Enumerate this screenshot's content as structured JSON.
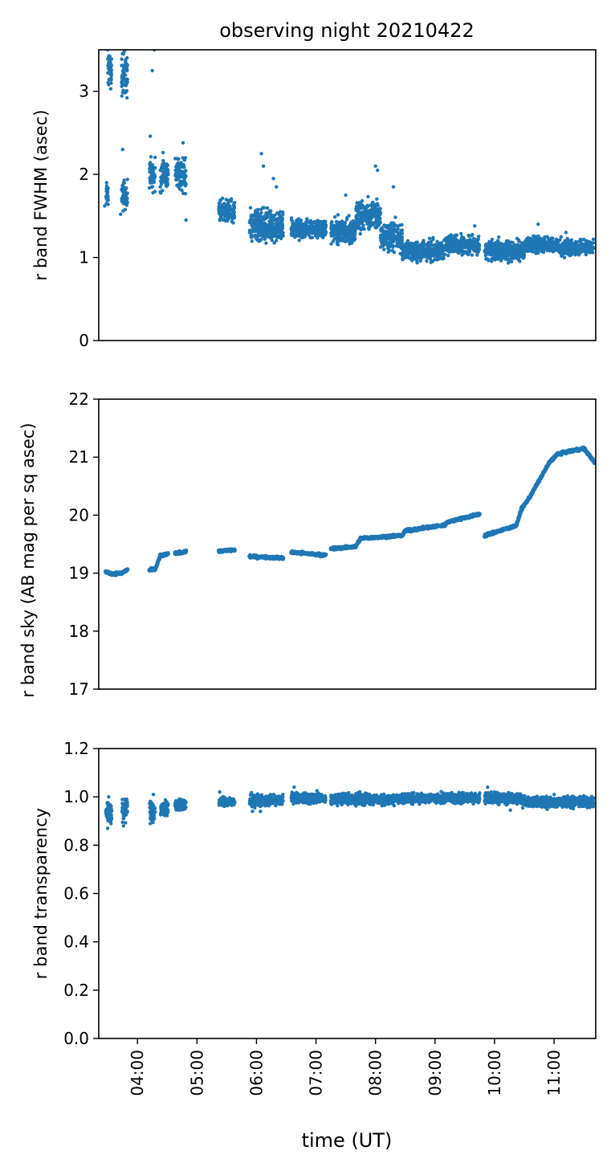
{
  "figure": {
    "title": "observing night 20210422",
    "xlabel": "time (UT)",
    "marker_color": "#1f77b4"
  },
  "chart_data": [
    {
      "type": "scatter",
      "title": "observing night 20210422",
      "ylabel": "r band FWHM (asec)",
      "xlim": [
        "03:21",
        "11:42"
      ],
      "ylim": [
        0,
        3.5
      ],
      "yticks": [
        "0",
        "1",
        "2",
        "3"
      ],
      "ytick_values": [
        0,
        1,
        2,
        3
      ],
      "show_xticks": false,
      "segments": [
        {
          "t0": "03:28",
          "t1": "03:31",
          "y": 1.75,
          "spread": 0.12
        },
        {
          "t0": "03:30",
          "t1": "03:34",
          "y": 3.25,
          "spread": 0.18
        },
        {
          "t0": "03:44",
          "t1": "03:50",
          "y": 1.75,
          "spread": 0.15
        },
        {
          "t0": "03:44",
          "t1": "03:50",
          "y": 3.2,
          "spread": 0.22
        },
        {
          "t0": "04:12",
          "t1": "04:18",
          "y": 2.0,
          "spread": 0.18
        },
        {
          "t0": "04:23",
          "t1": "04:31",
          "y": 2.0,
          "spread": 0.18
        },
        {
          "t0": "04:38",
          "t1": "04:49",
          "y": 2.02,
          "spread": 0.18
        },
        {
          "t0": "05:22",
          "t1": "05:38",
          "y": 1.55,
          "spread": 0.12
        },
        {
          "t0": "05:53",
          "t1": "06:27",
          "y": 1.38,
          "spread": 0.16
        },
        {
          "t0": "06:35",
          "t1": "07:10",
          "y": 1.35,
          "spread": 0.1
        },
        {
          "t0": "07:15",
          "t1": "07:40",
          "y": 1.32,
          "spread": 0.12
        },
        {
          "t0": "07:40",
          "t1": "08:05",
          "y": 1.5,
          "spread": 0.15
        },
        {
          "t0": "08:05",
          "t1": "08:27",
          "y": 1.25,
          "spread": 0.15
        },
        {
          "t0": "08:27",
          "t1": "09:10",
          "y": 1.08,
          "spread": 0.1
        },
        {
          "t0": "09:10",
          "t1": "09:45",
          "y": 1.15,
          "spread": 0.1
        },
        {
          "t0": "09:50",
          "t1": "10:30",
          "y": 1.08,
          "spread": 0.1
        },
        {
          "t0": "10:30",
          "t1": "11:05",
          "y": 1.15,
          "spread": 0.08
        },
        {
          "t0": "11:05",
          "t1": "11:40",
          "y": 1.12,
          "spread": 0.08
        }
      ],
      "outliers": [
        [
          "03:27",
          1.62
        ],
        [
          "03:29",
          1.86
        ],
        [
          "03:30",
          3.5
        ],
        [
          "03:31",
          3.08
        ],
        [
          "03:32",
          3.38
        ],
        [
          "03:43",
          1.52
        ],
        [
          "03:45",
          2.3
        ],
        [
          "03:46",
          1.9
        ],
        [
          "03:46",
          3.45
        ],
        [
          "03:47",
          3.0
        ],
        [
          "03:48",
          3.35
        ],
        [
          "04:13",
          2.46
        ],
        [
          "04:15",
          3.25
        ],
        [
          "04:17",
          3.5
        ],
        [
          "04:46",
          2.38
        ],
        [
          "04:49",
          1.45
        ],
        [
          "06:05",
          2.25
        ],
        [
          "06:07",
          2.1
        ],
        [
          "06:17",
          1.95
        ],
        [
          "06:20",
          1.85
        ],
        [
          "07:30",
          1.75
        ],
        [
          "08:00",
          2.1
        ],
        [
          "08:02",
          2.05
        ],
        [
          "08:18",
          1.85
        ],
        [
          "09:40",
          1.38
        ],
        [
          "10:44",
          1.4
        ],
        [
          "11:12",
          1.3
        ]
      ]
    },
    {
      "type": "scatter",
      "ylabel": "r band sky (AB mag per sq asec)",
      "xlim": [
        "03:21",
        "11:42"
      ],
      "ylim": [
        17,
        22
      ],
      "yticks": [
        "17",
        "18",
        "19",
        "20",
        "21",
        "22"
      ],
      "ytick_values": [
        17,
        18,
        19,
        20,
        21,
        22
      ],
      "show_xticks": false,
      "curve": [
        [
          "03:28",
          19.02
        ],
        [
          "03:35",
          18.99
        ],
        [
          "03:44",
          19.0
        ],
        [
          "03:50",
          19.06
        ],
        [
          "04:12",
          19.05
        ],
        [
          "04:18",
          19.07
        ],
        [
          "04:23",
          19.3
        ],
        [
          "04:31",
          19.33
        ],
        [
          "04:38",
          19.34
        ],
        [
          "04:49",
          19.37
        ],
        [
          "05:22",
          19.38
        ],
        [
          "05:38",
          19.4
        ],
        [
          "05:53",
          19.29
        ],
        [
          "06:27",
          19.26
        ],
        [
          "06:35",
          19.36
        ],
        [
          "07:10",
          19.31
        ],
        [
          "07:15",
          19.42
        ],
        [
          "07:40",
          19.46
        ],
        [
          "07:45",
          19.6
        ],
        [
          "08:27",
          19.65
        ],
        [
          "08:30",
          19.73
        ],
        [
          "09:10",
          19.83
        ],
        [
          "09:12",
          19.88
        ],
        [
          "09:45",
          20.02
        ],
        [
          "09:50",
          19.65
        ],
        [
          "10:22",
          19.82
        ],
        [
          "10:27",
          20.1
        ],
        [
          "10:35",
          20.3
        ],
        [
          "10:45",
          20.6
        ],
        [
          "10:55",
          20.9
        ],
        [
          "11:03",
          21.05
        ],
        [
          "11:15",
          21.1
        ],
        [
          "11:30",
          21.15
        ],
        [
          "11:37",
          21.0
        ],
        [
          "11:41",
          20.9
        ]
      ],
      "gaps": [
        [
          "03:50",
          "04:12"
        ],
        [
          "04:31",
          "04:38"
        ],
        [
          "04:49",
          "05:22"
        ],
        [
          "05:38",
          "05:53"
        ],
        [
          "06:27",
          "06:35"
        ],
        [
          "07:10",
          "07:15"
        ],
        [
          "09:45",
          "09:50"
        ]
      ]
    },
    {
      "type": "scatter",
      "ylabel": "r band transparency",
      "xlim": [
        "03:21",
        "11:42"
      ],
      "ylim": [
        0.0,
        1.2
      ],
      "yticks": [
        "0.0",
        "0.2",
        "0.4",
        "0.6",
        "0.8",
        "1.0",
        "1.2"
      ],
      "ytick_values": [
        0.0,
        0.2,
        0.4,
        0.6,
        0.8,
        1.0,
        1.2
      ],
      "xticks": [
        "04:00",
        "05:00",
        "06:00",
        "07:00",
        "08:00",
        "09:00",
        "10:00",
        "11:00"
      ],
      "xlabel": "time (UT)",
      "segments": [
        {
          "t0": "03:28",
          "t1": "03:34",
          "y": 0.94,
          "spread": 0.04
        },
        {
          "t0": "03:44",
          "t1": "03:50",
          "y": 0.945,
          "spread": 0.04
        },
        {
          "t0": "04:12",
          "t1": "04:18",
          "y": 0.945,
          "spread": 0.035
        },
        {
          "t0": "04:23",
          "t1": "04:31",
          "y": 0.95,
          "spread": 0.03
        },
        {
          "t0": "04:38",
          "t1": "04:49",
          "y": 0.965,
          "spread": 0.02
        },
        {
          "t0": "05:22",
          "t1": "05:38",
          "y": 0.98,
          "spread": 0.015
        },
        {
          "t0": "05:53",
          "t1": "06:27",
          "y": 0.985,
          "spread": 0.02
        },
        {
          "t0": "06:35",
          "t1": "07:10",
          "y": 0.995,
          "spread": 0.018
        },
        {
          "t0": "07:15",
          "t1": "08:27",
          "y": 0.99,
          "spread": 0.02
        },
        {
          "t0": "08:27",
          "t1": "09:45",
          "y": 0.995,
          "spread": 0.018
        },
        {
          "t0": "09:50",
          "t1": "10:27",
          "y": 0.995,
          "spread": 0.02
        },
        {
          "t0": "10:27",
          "t1": "11:40",
          "y": 0.98,
          "spread": 0.02
        }
      ],
      "outliers": [
        [
          "03:30",
          0.87
        ],
        [
          "03:31",
          1.0
        ],
        [
          "03:46",
          0.88
        ],
        [
          "03:47",
          0.99
        ],
        [
          "04:13",
          0.89
        ],
        [
          "04:16",
          1.01
        ],
        [
          "05:23",
          1.02
        ],
        [
          "05:56",
          0.94
        ],
        [
          "06:04",
          0.94
        ],
        [
          "06:38",
          1.04
        ],
        [
          "10:16",
          0.945
        ],
        [
          "09:53",
          1.04
        ]
      ]
    }
  ]
}
